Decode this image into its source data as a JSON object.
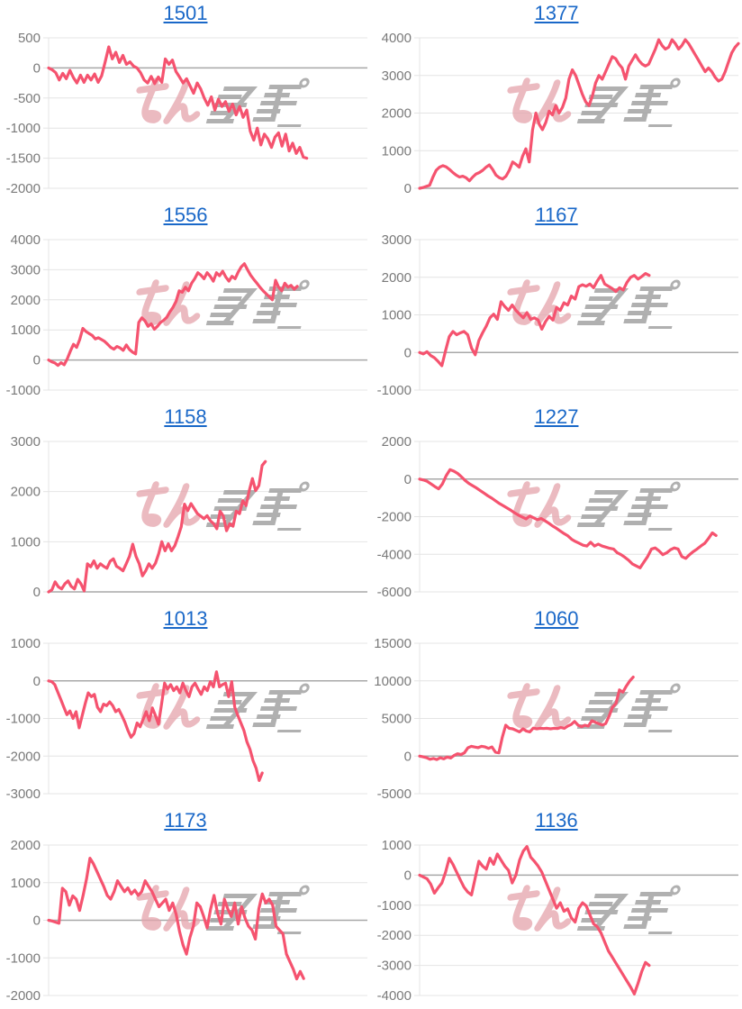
{
  "page": {
    "background": "#ffffff",
    "layout": "2x5 grid of machine profit graphs"
  },
  "colors": {
    "line": "#f5536f",
    "title_link": "#1a68c8",
    "axis_label": "#7a7a7a",
    "gridline": "#e4e4e4",
    "zero_line": "#a8a8a8",
    "watermark_pink": "#e5a4ac",
    "watermark_gray": "#a3a3a3"
  },
  "watermark": {
    "logo_text": "みんレポ",
    "pink_part": "みん",
    "gray_part": "レポ"
  },
  "chart_data": [
    {
      "type": "line",
      "title": "1501",
      "ylim": [
        -2000,
        500
      ],
      "ticks": [
        500,
        0,
        -500,
        -1000,
        -1500,
        -2000
      ],
      "x_end": 0.81,
      "grid": true,
      "legend": "none",
      "values": [
        0,
        -30,
        -80,
        -200,
        -90,
        -180,
        -40,
        -160,
        -250,
        -120,
        -240,
        -120,
        -200,
        -100,
        -240,
        -130,
        100,
        350,
        150,
        260,
        90,
        210,
        60,
        100,
        30,
        0,
        -80,
        -200,
        -250,
        -140,
        -260,
        -150,
        -240,
        150,
        60,
        130,
        -60,
        -150,
        -250,
        -180,
        -300,
        -420,
        -250,
        -350,
        -500,
        -620,
        -480,
        -700,
        -520,
        -640,
        -560,
        -720,
        -600,
        -780,
        -640,
        -820,
        -700,
        -1050,
        -1200,
        -1000,
        -1280,
        -1100,
        -1180,
        -1320,
        -1150,
        -1080,
        -1300,
        -1100,
        -1380,
        -1250,
        -1420,
        -1320,
        -1480,
        -1500
      ]
    },
    {
      "type": "line",
      "title": "1377",
      "ylim": [
        0,
        4000
      ],
      "ticks": [
        4000,
        3000,
        2000,
        1000,
        0
      ],
      "x_end": 1.0,
      "grid": true,
      "legend": "none",
      "values": [
        0,
        20,
        50,
        80,
        300,
        480,
        560,
        600,
        570,
        500,
        420,
        350,
        300,
        320,
        280,
        200,
        300,
        380,
        420,
        480,
        560,
        620,
        500,
        350,
        280,
        250,
        320,
        480,
        700,
        640,
        560,
        850,
        1050,
        700,
        1550,
        2000,
        1700,
        1560,
        1750,
        2050,
        1950,
        2200,
        2000,
        2150,
        2400,
        2900,
        3150,
        3000,
        2750,
        2500,
        2300,
        2200,
        2450,
        2800,
        3000,
        2900,
        3100,
        3300,
        3500,
        3450,
        3300,
        3200,
        2900,
        3250,
        3400,
        3550,
        3400,
        3300,
        3250,
        3300,
        3500,
        3700,
        3950,
        3800,
        3700,
        3750,
        3950,
        3850,
        3700,
        3800,
        3950,
        3850,
        3700,
        3550,
        3400,
        3250,
        3100,
        3200,
        3100,
        2950,
        2850,
        2900,
        3100,
        3350,
        3600,
        3750,
        3850
      ]
    },
    {
      "type": "line",
      "title": "1556",
      "ylim": [
        -1000,
        4000
      ],
      "ticks": [
        4000,
        3000,
        2000,
        1000,
        0,
        -1000
      ],
      "x_end": 0.78,
      "grid": true,
      "legend": "none",
      "values": [
        0,
        -60,
        -100,
        -180,
        -90,
        -160,
        40,
        300,
        520,
        420,
        680,
        1050,
        950,
        880,
        820,
        700,
        740,
        680,
        620,
        520,
        420,
        360,
        450,
        400,
        320,
        500,
        350,
        260,
        200,
        1250,
        1400,
        1300,
        1120,
        1200,
        1020,
        1120,
        1250,
        1320,
        1420,
        1600,
        1750,
        1950,
        2300,
        2250,
        2420,
        2300,
        2550,
        2700,
        2900,
        2820,
        2700,
        2900,
        2780,
        2620,
        2900,
        2800,
        2950,
        2760,
        2620,
        2780,
        2700,
        2920,
        3100,
        3200,
        3000,
        2820,
        2680,
        2550,
        2420,
        2300,
        2200,
        2100,
        2000,
        2650,
        2420,
        2300,
        2550,
        2420,
        2480,
        2350,
        2450
      ]
    },
    {
      "type": "line",
      "title": "1167",
      "ylim": [
        -1000,
        3000
      ],
      "ticks": [
        3000,
        2000,
        1000,
        0,
        -1000
      ],
      "x_end": 0.72,
      "grid": true,
      "legend": "none",
      "values": [
        0,
        -40,
        20,
        -80,
        -140,
        -240,
        -350,
        50,
        420,
        560,
        470,
        520,
        560,
        470,
        120,
        -60,
        320,
        520,
        700,
        920,
        1020,
        880,
        1350,
        1220,
        1120,
        1260,
        1120,
        1020,
        920,
        1060,
        880,
        920,
        860,
        620,
        820,
        960,
        860,
        1200,
        1120,
        1320,
        1260,
        1500,
        1420,
        1750,
        1800,
        1760,
        1820,
        1720,
        1900,
        2050,
        1820,
        1760,
        1700,
        1620,
        1720,
        1660,
        1860,
        2000,
        2050,
        1950,
        2020,
        2100,
        2050
      ]
    },
    {
      "type": "line",
      "title": "1158",
      "ylim": [
        0,
        3000
      ],
      "ticks": [
        3000,
        2000,
        1000,
        0
      ],
      "x_end": 0.68,
      "grid": true,
      "legend": "none",
      "values": [
        0,
        40,
        200,
        100,
        60,
        160,
        220,
        110,
        60,
        250,
        160,
        20,
        560,
        500,
        620,
        470,
        560,
        510,
        470,
        610,
        660,
        510,
        470,
        420,
        560,
        710,
        950,
        710,
        560,
        320,
        420,
        560,
        470,
        570,
        760,
        1000,
        820,
        960,
        820,
        920,
        1100,
        1300,
        1750,
        1620,
        1760,
        1660,
        1560,
        1510,
        1460,
        1520,
        1420,
        1360,
        1260,
        1610,
        1510,
        1220,
        1360,
        1310,
        1610,
        1560,
        1820,
        1720,
        2020,
        2260,
        2020,
        2120,
        2520,
        2600
      ]
    },
    {
      "type": "line",
      "title": "1227",
      "ylim": [
        -6000,
        2000
      ],
      "ticks": [
        2000,
        0,
        -2000,
        -4000,
        -6000
      ],
      "x_end": 0.93,
      "grid": true,
      "legend": "none",
      "values": [
        0,
        -50,
        -120,
        -260,
        -400,
        -520,
        -260,
        180,
        500,
        420,
        300,
        120,
        -80,
        -240,
        -360,
        -480,
        -620,
        -760,
        -900,
        -1020,
        -1160,
        -1300,
        -1420,
        -1540,
        -1660,
        -1800,
        -1920,
        -2020,
        -2120,
        -1960,
        -2060,
        -2160,
        -2100,
        -2220,
        -2350,
        -2500,
        -2620,
        -2760,
        -2900,
        -3020,
        -3200,
        -3320,
        -3420,
        -3520,
        -3560,
        -3360,
        -3560,
        -3460,
        -3560,
        -3620,
        -3680,
        -3720,
        -3920,
        -4020,
        -4160,
        -4320,
        -4520,
        -4620,
        -4720,
        -4420,
        -4120,
        -3720,
        -3660,
        -3820,
        -4020,
        -3920,
        -3760,
        -3660,
        -3720,
        -4120,
        -4220,
        -4020,
        -3860,
        -3720,
        -3560,
        -3420,
        -3160,
        -2860,
        -3000
      ]
    },
    {
      "type": "line",
      "title": "1013",
      "ylim": [
        -3000,
        1000
      ],
      "ticks": [
        1000,
        0,
        -1000,
        -2000,
        -3000
      ],
      "x_end": 0.67,
      "grid": true,
      "legend": "none",
      "values": [
        0,
        -20,
        -100,
        -300,
        -500,
        -700,
        -900,
        -800,
        -1000,
        -820,
        -1250,
        -920,
        -600,
        -320,
        -420,
        -360,
        -700,
        -820,
        -620,
        -660,
        -560,
        -660,
        -820,
        -760,
        -920,
        -1100,
        -1320,
        -1500,
        -1400,
        -1120,
        -1220,
        -1020,
        -820,
        -1060,
        -720,
        -920,
        -1150,
        -620,
        -60,
        -220,
        -100,
        -260,
        -160,
        -320,
        -60,
        -260,
        -420,
        -160,
        -60,
        -220,
        -360,
        -160,
        -260,
        -20,
        -160,
        240,
        -160,
        -100,
        -60,
        -420,
        -20,
        -700,
        -920,
        -1120,
        -1320,
        -1620,
        -1820,
        -2120,
        -2320,
        -2650,
        -2450
      ]
    },
    {
      "type": "line",
      "title": "1060",
      "ylim": [
        -5000,
        15000
      ],
      "ticks": [
        15000,
        10000,
        5000,
        0,
        -5000
      ],
      "x_end": 0.67,
      "grid": true,
      "legend": "none",
      "values": [
        0,
        -100,
        -220,
        -420,
        -320,
        -460,
        -220,
        -360,
        -120,
        -260,
        80,
        300,
        200,
        420,
        1100,
        1300,
        1200,
        1120,
        1300,
        1220,
        1020,
        1220,
        520,
        420,
        2500,
        4100,
        3700,
        3620,
        3420,
        3220,
        3620,
        3320,
        3220,
        3720,
        3620,
        3700,
        3660,
        3700,
        3620,
        3700,
        3660,
        3800,
        3700,
        4000,
        4200,
        4600,
        4100,
        3900,
        4100,
        4000,
        4700,
        4500,
        4300,
        4120,
        4320,
        5300,
        6500,
        7000,
        8800,
        8500,
        9300,
        10000,
        10500
      ]
    },
    {
      "type": "line",
      "title": "1173",
      "ylim": [
        -2000,
        2000
      ],
      "ticks": [
        2000,
        1000,
        0,
        -1000,
        -2000
      ],
      "x_end": 0.8,
      "grid": true,
      "legend": "none",
      "values": [
        0,
        -20,
        -50,
        -80,
        850,
        760,
        400,
        650,
        560,
        260,
        660,
        1100,
        1650,
        1500,
        1300,
        1100,
        900,
        660,
        560,
        760,
        1050,
        900,
        760,
        860,
        700,
        800,
        660,
        760,
        1050,
        900,
        760,
        560,
        360,
        460,
        560,
        260,
        460,
        160,
        -300,
        -660,
        -900,
        -460,
        -160,
        460,
        360,
        100,
        -200,
        300,
        660,
        200,
        -100,
        560,
        300,
        100,
        460,
        -100,
        360,
        60,
        -160,
        -260,
        -500,
        300,
        700,
        460,
        560,
        400,
        -160,
        -260,
        -360,
        -900,
        -1100,
        -1300,
        -1560,
        -1360,
        -1550
      ]
    },
    {
      "type": "line",
      "title": "1136",
      "ylim": [
        -4000,
        1000
      ],
      "ticks": [
        1000,
        0,
        -1000,
        -2000,
        -3000,
        -4000
      ],
      "x_end": 0.72,
      "grid": true,
      "legend": "none",
      "values": [
        0,
        -60,
        -120,
        -300,
        -600,
        -420,
        -260,
        100,
        560,
        360,
        100,
        -160,
        -400,
        -560,
        -660,
        -100,
        460,
        300,
        200,
        560,
        360,
        700,
        500,
        300,
        160,
        -260,
        0,
        500,
        800,
        950,
        600,
        460,
        300,
        100,
        -200,
        -500,
        -800,
        -1100,
        -920,
        -1200,
        -1120,
        -1420,
        -1560,
        -1100,
        -920,
        -1020,
        -1320,
        -1620,
        -1720,
        -1920,
        -2220,
        -2520,
        -2720,
        -2920,
        -3120,
        -3320,
        -3520,
        -3720,
        -3950,
        -3600,
        -3200,
        -2900,
        -3000
      ]
    }
  ]
}
